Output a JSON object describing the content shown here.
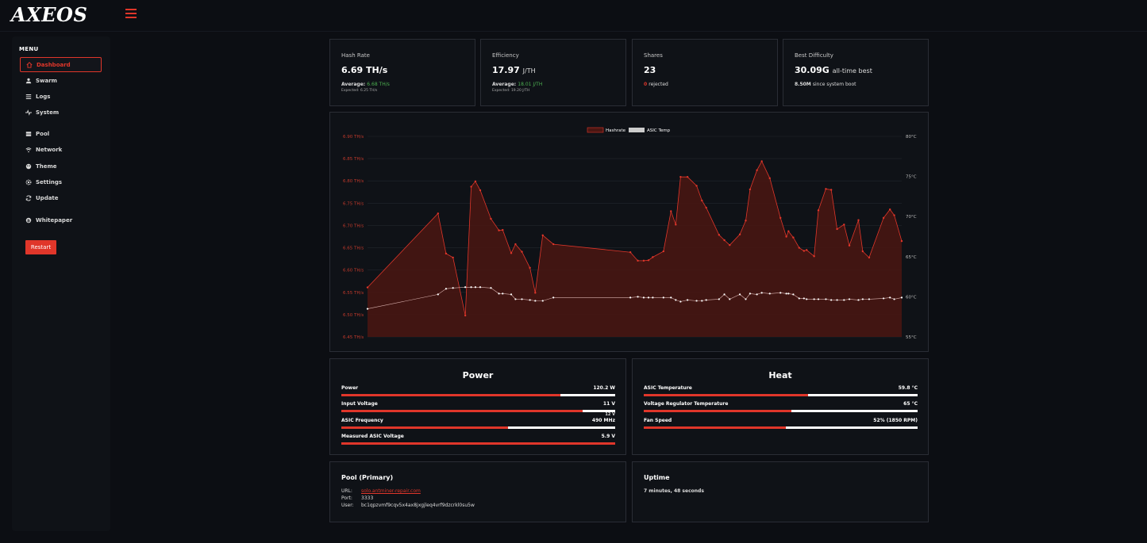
{
  "app": {
    "logo": "AXEOS"
  },
  "sidebar": {
    "menu_title": "MENU",
    "items": [
      {
        "label": "Dashboard",
        "icon": "home-icon"
      },
      {
        "label": "Swarm",
        "icon": "swarm-icon"
      },
      {
        "label": "Logs",
        "icon": "list-icon"
      },
      {
        "label": "System",
        "icon": "pulse-icon"
      },
      {
        "label": "Pool",
        "icon": "server-icon"
      },
      {
        "label": "Network",
        "icon": "wifi-icon"
      },
      {
        "label": "Theme",
        "icon": "palette-icon"
      },
      {
        "label": "Settings",
        "icon": "gear-icon"
      },
      {
        "label": "Update",
        "icon": "refresh-icon"
      },
      {
        "label": "Whitepaper",
        "icon": "bitcoin-icon"
      }
    ],
    "restart_label": "Restart"
  },
  "stats": {
    "hashrate": {
      "label": "Hash Rate",
      "value": "6.69",
      "unit": "TH/s",
      "avg_label": "Average:",
      "avg_value": "6.68 TH/s",
      "expected": "Expected: 6.25 TH/s"
    },
    "efficiency": {
      "label": "Efficiency",
      "value": "17.97",
      "unit": "J/TH",
      "avg_label": "Average:",
      "avg_value": "18.01 J/TH",
      "expected": "Expected: 19.20 J/TH"
    },
    "shares": {
      "label": "Shares",
      "value": "23",
      "rejected_count": "0",
      "rejected_label": "rejected"
    },
    "best_difficulty": {
      "label": "Best Difficulty",
      "value": "30.09G",
      "suffix": "all-time best",
      "since_value": "8.50M",
      "since_label": "since system boot"
    }
  },
  "chart_data": {
    "type": "line",
    "series": [
      {
        "name": "Hashrate",
        "color": "#e0362a",
        "axis": "left",
        "x": [
          0,
          13.2,
          14.7,
          16.0,
          18.3,
          19.4,
          20.2,
          21.1,
          23.1,
          24.6,
          25.3,
          26.9,
          27.7,
          28.9,
          30.4,
          31.4,
          32.8,
          34.8,
          49.2,
          50.6,
          51.7,
          52.6,
          53.4,
          55.4,
          56.8,
          57.7,
          58.6,
          59.9,
          61.6,
          62.6,
          63.4,
          65.8,
          66.8,
          67.8,
          69.7,
          70.8,
          71.6,
          72.9,
          73.8,
          75.3,
          77.3,
          78.4,
          78.8,
          79.7,
          80.8,
          81.7,
          82.2,
          83.6,
          84.4,
          85.8,
          86.8,
          87.9,
          89.2,
          90.2,
          91.9,
          92.7,
          93.9,
          96.6,
          97.8,
          98.6,
          100
        ],
        "values": [
          6.561,
          6.727,
          6.637,
          6.628,
          6.498,
          6.787,
          6.799,
          6.779,
          6.715,
          6.689,
          6.69,
          6.638,
          6.658,
          6.641,
          6.605,
          6.549,
          6.678,
          6.658,
          6.64,
          6.621,
          6.621,
          6.622,
          6.629,
          6.642,
          6.732,
          6.702,
          6.809,
          6.809,
          6.789,
          6.756,
          6.74,
          6.679,
          6.667,
          6.656,
          6.68,
          6.711,
          6.781,
          6.824,
          6.844,
          6.806,
          6.717,
          6.675,
          6.687,
          6.673,
          6.65,
          6.643,
          6.645,
          6.631,
          6.734,
          6.782,
          6.78,
          6.692,
          6.702,
          6.655,
          6.712,
          6.642,
          6.628,
          6.717,
          6.736,
          6.723,
          6.665
        ]
      },
      {
        "name": "ASIC Temp",
        "color": "#ffffff",
        "axis": "right",
        "x": [
          0,
          13.2,
          14.7,
          16.0,
          18.3,
          19.4,
          20.2,
          21.1,
          23.1,
          24.6,
          25.3,
          26.9,
          27.7,
          28.9,
          30.4,
          31.4,
          32.8,
          34.8,
          49.2,
          50.6,
          51.7,
          52.6,
          53.4,
          55.4,
          56.8,
          57.7,
          58.6,
          59.9,
          61.6,
          62.6,
          63.4,
          65.8,
          66.8,
          67.8,
          69.7,
          70.8,
          71.6,
          72.9,
          73.8,
          75.3,
          77.3,
          78.4,
          78.8,
          79.7,
          80.8,
          81.7,
          82.2,
          83.6,
          84.4,
          85.8,
          86.8,
          87.9,
          89.2,
          90.2,
          91.9,
          92.7,
          93.9,
          96.6,
          97.8,
          98.6,
          100
        ],
        "values": [
          58.5,
          60.3,
          61.0,
          61.1,
          61.2,
          61.2,
          61.2,
          61.2,
          61.1,
          60.4,
          60.4,
          60.3,
          59.7,
          59.7,
          59.6,
          59.5,
          59.5,
          59.9,
          59.9,
          60.0,
          59.9,
          59.9,
          59.9,
          59.9,
          59.9,
          59.6,
          59.4,
          59.6,
          59.5,
          59.5,
          59.6,
          59.7,
          60.3,
          59.7,
          60.3,
          59.7,
          60.4,
          60.3,
          60.5,
          60.4,
          60.5,
          60.4,
          60.4,
          60.3,
          59.8,
          59.8,
          59.7,
          59.7,
          59.7,
          59.7,
          59.6,
          59.6,
          59.6,
          59.7,
          59.6,
          59.7,
          59.7,
          59.8,
          59.9,
          59.7,
          59.9
        ]
      }
    ],
    "y_left": {
      "ticks": [
        "6.90 TH/s",
        "6.85 TH/s",
        "6.80 TH/s",
        "6.75 TH/s",
        "6.70 TH/s",
        "6.65 TH/s",
        "6.60 TH/s",
        "6.55 TH/s",
        "6.50 TH/s",
        "6.45 TH/s"
      ],
      "ylim": [
        6.45,
        6.9
      ]
    },
    "y_right": {
      "ticks": [
        "80°C",
        "75°C",
        "70°C",
        "65°C",
        "60°C",
        "55°C"
      ],
      "ylim": [
        55,
        80
      ]
    },
    "legend_position": "top-center",
    "grid": true
  },
  "power": {
    "title": "Power",
    "metrics": [
      {
        "label": "Power",
        "value": "120.2 W",
        "fill": 0.8
      },
      {
        "label": "Input Voltage",
        "value": "11 V",
        "fill": 0.88,
        "note": "12 V"
      },
      {
        "label": "ASIC Frequency",
        "value": "490 MHz",
        "fill": 0.61
      },
      {
        "label": "Measured ASIC Voltage",
        "value": "5.9 V",
        "fill": 1.0
      }
    ]
  },
  "heat": {
    "title": "Heat",
    "metrics": [
      {
        "label": "ASIC Temperature",
        "value": "59.8 °C",
        "fill": 0.6
      },
      {
        "label": "Voltage Regulator Temperature",
        "value": "65 °C",
        "fill": 0.54
      },
      {
        "label": "Fan Speed",
        "value": "52% (1850 RPM)",
        "fill": 0.52
      }
    ]
  },
  "pool": {
    "title": "Pool (Primary)",
    "url_label": "URL:",
    "url_value": "solo.antminer-repair.com",
    "port_label": "Port:",
    "port_value": "3333",
    "user_label": "User:",
    "user_value": "bc1qpzvmf9cqv5x4ax8jxgjleq4vrf9dzcrkl0su5w"
  },
  "uptime": {
    "title": "Uptime",
    "value": "7 minutes, 48 seconds"
  }
}
